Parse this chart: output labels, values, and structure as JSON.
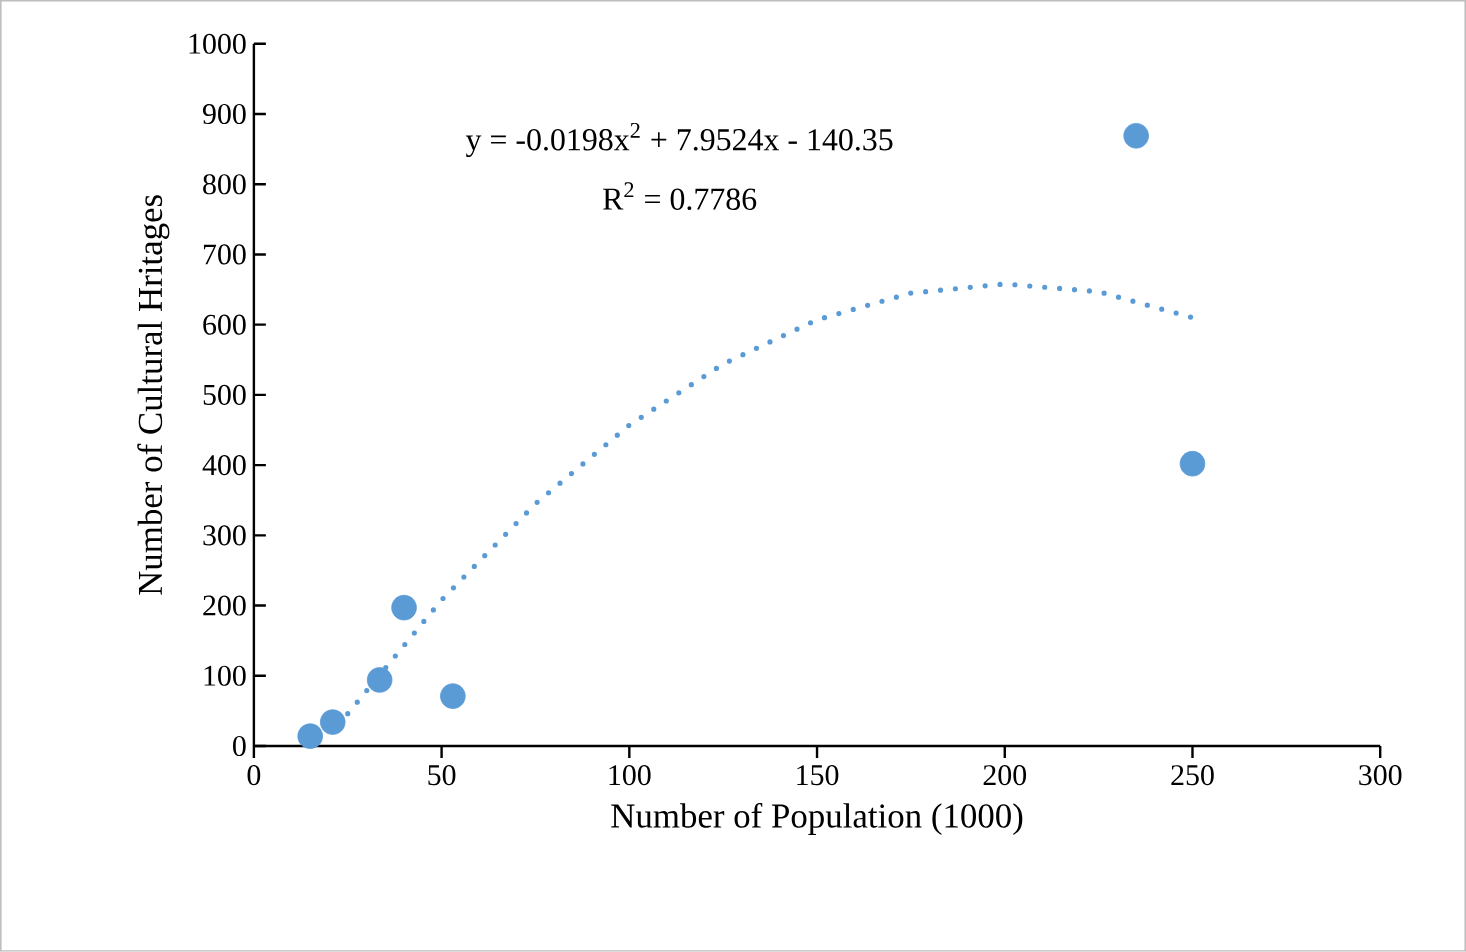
{
  "chart_data": {
    "type": "scatter",
    "xlabel": "Number of Population (1000)",
    "ylabel": "Number of Cultural Hritages",
    "xlim": [
      0,
      300
    ],
    "xticks": [
      0,
      50,
      100,
      150,
      200,
      250,
      300
    ],
    "ylim": [
      0,
      1000
    ],
    "yticks": [
      0,
      100,
      200,
      300,
      400,
      500,
      600,
      700,
      800,
      900,
      1000
    ],
    "annotations": [
      "y = -0.0198x$^{2}$ + 7.9524x - 140.35",
      "R$^{2}$ = 0.7786"
    ],
    "series": [
      {
        "color": "#5b9bd5",
        "marker": "circle",
        "x": [
          15,
          21,
          33.5,
          40,
          53,
          235,
          250
        ],
        "values": [
          14,
          34,
          94,
          197,
          71,
          869,
          402
        ]
      },
      {
        "type": "line",
        "color": "#5b9bd5",
        "marker": "none",
        "line_style": "dotted",
        "x": [
          25,
          50,
          75,
          100,
          125,
          150,
          175,
          200,
          225,
          250
        ],
        "values": [
          46,
          208,
          345,
          457,
          544,
          607,
          645,
          658,
          647,
          610
        ]
      }
    ]
  }
}
